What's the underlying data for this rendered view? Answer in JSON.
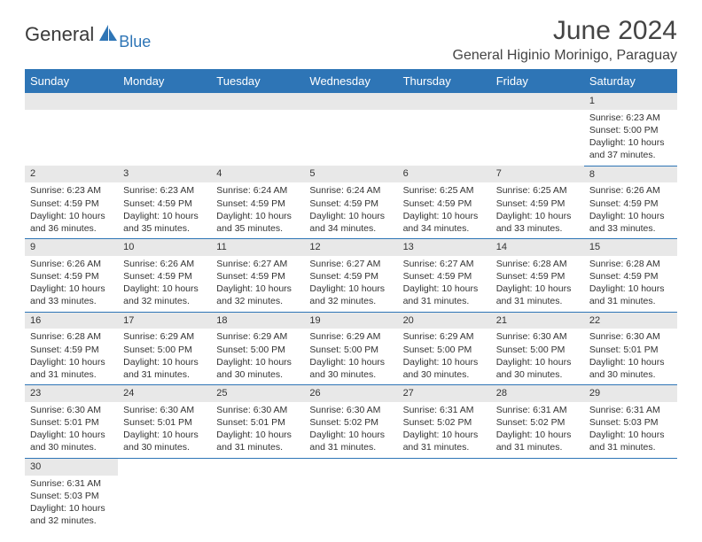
{
  "logo": {
    "text_main": "General",
    "text_sub": "Blue",
    "main_color": "#3a3a3a",
    "sub_color": "#2e75b6"
  },
  "header": {
    "month_title": "June 2024",
    "location": "General Higinio Morinigo, Paraguay"
  },
  "style": {
    "header_bg": "#2e75b6",
    "header_fg": "#ffffff",
    "daynum_bg": "#e8e8e8",
    "cell_border": "#2e75b6",
    "body_font_size": 10.5,
    "header_font_size": 13
  },
  "weekdays": [
    "Sunday",
    "Monday",
    "Tuesday",
    "Wednesday",
    "Thursday",
    "Friday",
    "Saturday"
  ],
  "weeks": [
    [
      null,
      null,
      null,
      null,
      null,
      null,
      {
        "n": "1",
        "sunrise": "6:23 AM",
        "sunset": "5:00 PM",
        "daylight": "10 hours and 37 minutes."
      }
    ],
    [
      {
        "n": "2",
        "sunrise": "6:23 AM",
        "sunset": "4:59 PM",
        "daylight": "10 hours and 36 minutes."
      },
      {
        "n": "3",
        "sunrise": "6:23 AM",
        "sunset": "4:59 PM",
        "daylight": "10 hours and 35 minutes."
      },
      {
        "n": "4",
        "sunrise": "6:24 AM",
        "sunset": "4:59 PM",
        "daylight": "10 hours and 35 minutes."
      },
      {
        "n": "5",
        "sunrise": "6:24 AM",
        "sunset": "4:59 PM",
        "daylight": "10 hours and 34 minutes."
      },
      {
        "n": "6",
        "sunrise": "6:25 AM",
        "sunset": "4:59 PM",
        "daylight": "10 hours and 34 minutes."
      },
      {
        "n": "7",
        "sunrise": "6:25 AM",
        "sunset": "4:59 PM",
        "daylight": "10 hours and 33 minutes."
      },
      {
        "n": "8",
        "sunrise": "6:26 AM",
        "sunset": "4:59 PM",
        "daylight": "10 hours and 33 minutes."
      }
    ],
    [
      {
        "n": "9",
        "sunrise": "6:26 AM",
        "sunset": "4:59 PM",
        "daylight": "10 hours and 33 minutes."
      },
      {
        "n": "10",
        "sunrise": "6:26 AM",
        "sunset": "4:59 PM",
        "daylight": "10 hours and 32 minutes."
      },
      {
        "n": "11",
        "sunrise": "6:27 AM",
        "sunset": "4:59 PM",
        "daylight": "10 hours and 32 minutes."
      },
      {
        "n": "12",
        "sunrise": "6:27 AM",
        "sunset": "4:59 PM",
        "daylight": "10 hours and 32 minutes."
      },
      {
        "n": "13",
        "sunrise": "6:27 AM",
        "sunset": "4:59 PM",
        "daylight": "10 hours and 31 minutes."
      },
      {
        "n": "14",
        "sunrise": "6:28 AM",
        "sunset": "4:59 PM",
        "daylight": "10 hours and 31 minutes."
      },
      {
        "n": "15",
        "sunrise": "6:28 AM",
        "sunset": "4:59 PM",
        "daylight": "10 hours and 31 minutes."
      }
    ],
    [
      {
        "n": "16",
        "sunrise": "6:28 AM",
        "sunset": "4:59 PM",
        "daylight": "10 hours and 31 minutes."
      },
      {
        "n": "17",
        "sunrise": "6:29 AM",
        "sunset": "5:00 PM",
        "daylight": "10 hours and 31 minutes."
      },
      {
        "n": "18",
        "sunrise": "6:29 AM",
        "sunset": "5:00 PM",
        "daylight": "10 hours and 30 minutes."
      },
      {
        "n": "19",
        "sunrise": "6:29 AM",
        "sunset": "5:00 PM",
        "daylight": "10 hours and 30 minutes."
      },
      {
        "n": "20",
        "sunrise": "6:29 AM",
        "sunset": "5:00 PM",
        "daylight": "10 hours and 30 minutes."
      },
      {
        "n": "21",
        "sunrise": "6:30 AM",
        "sunset": "5:00 PM",
        "daylight": "10 hours and 30 minutes."
      },
      {
        "n": "22",
        "sunrise": "6:30 AM",
        "sunset": "5:01 PM",
        "daylight": "10 hours and 30 minutes."
      }
    ],
    [
      {
        "n": "23",
        "sunrise": "6:30 AM",
        "sunset": "5:01 PM",
        "daylight": "10 hours and 30 minutes."
      },
      {
        "n": "24",
        "sunrise": "6:30 AM",
        "sunset": "5:01 PM",
        "daylight": "10 hours and 30 minutes."
      },
      {
        "n": "25",
        "sunrise": "6:30 AM",
        "sunset": "5:01 PM",
        "daylight": "10 hours and 31 minutes."
      },
      {
        "n": "26",
        "sunrise": "6:30 AM",
        "sunset": "5:02 PM",
        "daylight": "10 hours and 31 minutes."
      },
      {
        "n": "27",
        "sunrise": "6:31 AM",
        "sunset": "5:02 PM",
        "daylight": "10 hours and 31 minutes."
      },
      {
        "n": "28",
        "sunrise": "6:31 AM",
        "sunset": "5:02 PM",
        "daylight": "10 hours and 31 minutes."
      },
      {
        "n": "29",
        "sunrise": "6:31 AM",
        "sunset": "5:03 PM",
        "daylight": "10 hours and 31 minutes."
      }
    ],
    [
      {
        "n": "30",
        "sunrise": "6:31 AM",
        "sunset": "5:03 PM",
        "daylight": "10 hours and 32 minutes."
      },
      null,
      null,
      null,
      null,
      null,
      null
    ]
  ],
  "labels": {
    "sunrise": "Sunrise:",
    "sunset": "Sunset:",
    "daylight": "Daylight:"
  }
}
